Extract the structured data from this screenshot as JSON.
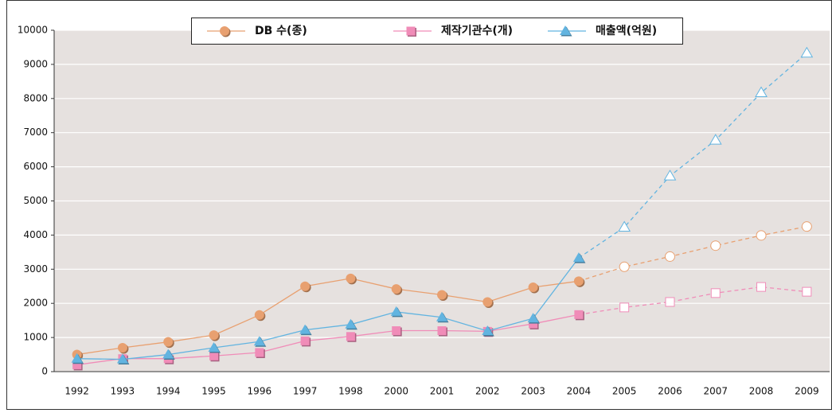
{
  "chart_data": {
    "type": "line",
    "categories": [
      "1992",
      "1993",
      "1994",
      "1995",
      "1996",
      "1997",
      "1998",
      "2000",
      "2001",
      "2002",
      "2003",
      "2004",
      "2005",
      "2006",
      "2007",
      "2008",
      "2009"
    ],
    "projected": [
      false,
      false,
      false,
      false,
      false,
      false,
      false,
      false,
      false,
      false,
      false,
      false,
      true,
      true,
      true,
      true,
      true
    ],
    "series": [
      {
        "name": "DB 수(종)",
        "color": "#e8a070",
        "marker": "circle",
        "values": [
          500,
          700,
          870,
          1070,
          1660,
          2500,
          2730,
          2420,
          2250,
          2040,
          2470,
          2650,
          3070,
          3370,
          3690,
          3990,
          4250
        ]
      },
      {
        "name": "제작기관수(개)",
        "color": "#f08cb8",
        "marker": "square",
        "values": [
          200,
          380,
          380,
          460,
          560,
          900,
          1030,
          1200,
          1200,
          1180,
          1400,
          1670,
          1880,
          2040,
          2300,
          2480,
          2340
        ]
      },
      {
        "name": "매출액(억원)",
        "color": "#62b4e0",
        "marker": "triangle",
        "values": [
          380,
          360,
          500,
          700,
          880,
          1220,
          1380,
          1750,
          1590,
          1190,
          1560,
          3330,
          4230,
          5730,
          6780,
          8170,
          9330
        ]
      }
    ],
    "ylim": [
      0,
      10000
    ],
    "yticks": [
      0,
      1000,
      2000,
      3000,
      4000,
      5000,
      6000,
      7000,
      8000,
      9000,
      10000
    ],
    "grid": true
  }
}
